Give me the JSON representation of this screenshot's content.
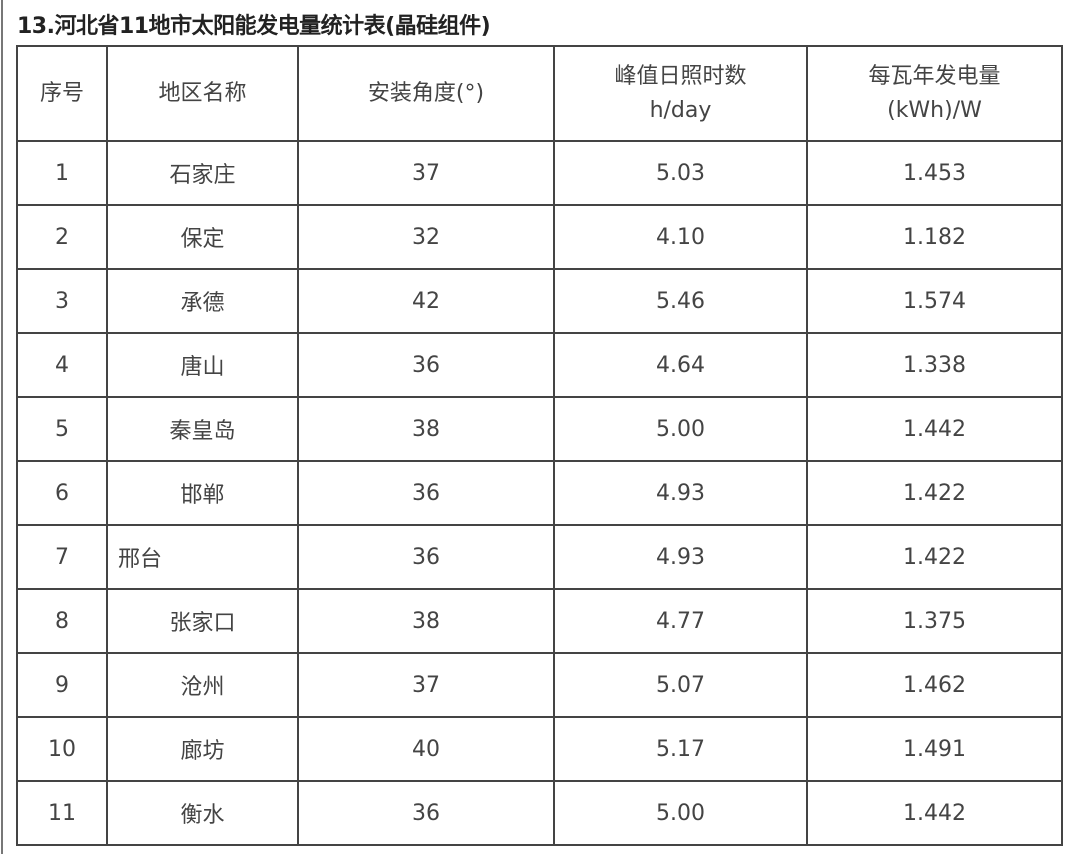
{
  "title": "13.河北省11地市太阳能发电量统计表(晶硅组件)",
  "table": {
    "headers": [
      {
        "line1": "序号",
        "line2": ""
      },
      {
        "line1": "地区名称",
        "line2": ""
      },
      {
        "line1": "安装角度(°)",
        "line2": ""
      },
      {
        "line1": "峰值日照时数",
        "line2": "h/day"
      },
      {
        "line1": "每瓦年发电量",
        "line2": "(kWh)/W"
      }
    ],
    "rows": [
      [
        "1",
        "石家庄",
        "37",
        "5.03",
        "1.453"
      ],
      [
        "2",
        "保定",
        "32",
        "4.10",
        "1.182"
      ],
      [
        "3",
        "承德",
        "42",
        "5.46",
        "1.574"
      ],
      [
        "4",
        "唐山",
        "36",
        "4.64",
        "1.338"
      ],
      [
        "5",
        "秦皇岛",
        "38",
        "5.00",
        "1.442"
      ],
      [
        "6",
        "邯郸",
        "36",
        "4.93",
        "1.422"
      ],
      [
        "7",
        "邢台",
        "36",
        "4.93",
        "1.422"
      ],
      [
        "8",
        "张家口",
        "38",
        "4.77",
        "1.375"
      ],
      [
        "9",
        "沧州",
        "37",
        "5.07",
        "1.462"
      ],
      [
        "10",
        "廊坊",
        "40",
        "5.17",
        "1.491"
      ],
      [
        "11",
        "衡水",
        "36",
        "5.00",
        "1.442"
      ]
    ]
  }
}
